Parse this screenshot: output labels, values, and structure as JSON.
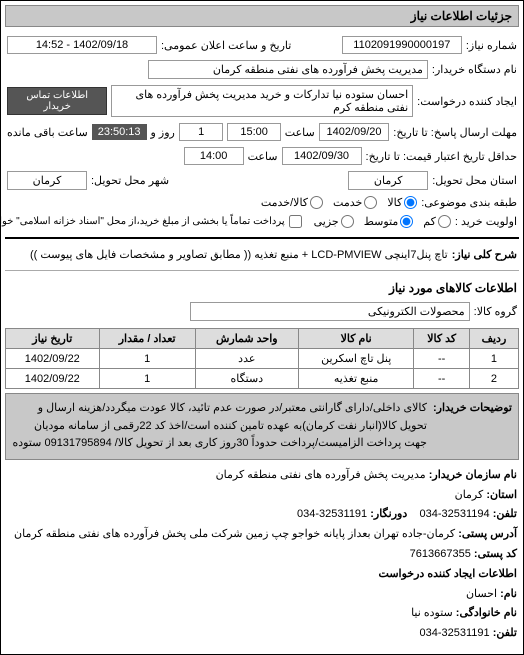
{
  "header": {
    "title": "جزئیات اطلاعات نیاز"
  },
  "fields": {
    "req_number_label": "شماره نیاز:",
    "req_number": "1102091990000197",
    "announce_label": "تاریخ و ساعت اعلان عمومی:",
    "announce_value": "1402/09/18 - 14:52",
    "buyer_org_label": "نام دستگاه خریدار:",
    "buyer_org": "مدیریت پخش فرآورده های نفتی منطقه کرمان",
    "requester_label": "ایجاد کننده درخواست:",
    "requester": "احسان  ستوده نیا  تدارکات و خرید  مدیریت پخش فرآورده های نفتی منطقه کرم",
    "contact_btn": "اطلاعات تماس خریدار",
    "deadline_send_label": "مهلت ارسال پاسخ: تا تاریخ:",
    "deadline_send_date": "1402/09/20",
    "deadline_send_time_label": "ساعت",
    "deadline_send_time": "15:00",
    "remaining_days": "1",
    "remaining_days_label": "روز و",
    "countdown": "23:50:13",
    "remaining_label": "ساعت باقی مانده",
    "validity_label": "حداقل تاریخ اعتبار قیمت: تا تاریخ:",
    "validity_date": "1402/09/30",
    "validity_time_label": "ساعت",
    "validity_time": "14:00",
    "province_label": "استان محل تحویل:",
    "province": "کرمان",
    "city_label": "شهر محل تحویل:",
    "city": "کرمان",
    "package_label": "طبقه بندی موضوعی:",
    "radio_goods": "کالا",
    "radio_service": "خدمت",
    "radio_goods_service": "کالا/خدمت",
    "priority_label": "اولویت خرید :",
    "radio_low": "کم",
    "radio_med": "متوسط",
    "radio_high": "جزیی",
    "payment_note": "پرداخت تماماً یا بخشی از مبلغ خرید،از محل \"اسناد خزانه اسلامی\" خواهد بود."
  },
  "description": {
    "label": "شرح کلی نیاز:",
    "text": "تاچ پنل7اینچی LCD-PMVIEW + منبع تغذیه (( مطابق تصاویر و مشخصات فایل های پیوست ))"
  },
  "goods_section": {
    "title": "اطلاعات کالاهای مورد نیاز",
    "group_label": "گروه کالا:",
    "group_value": "محصولات الکترونیکی"
  },
  "table": {
    "headers": [
      "ردیف",
      "کد کالا",
      "نام کالا",
      "واحد شمارش",
      "تعداد / مقدار",
      "تاریخ نیاز"
    ],
    "rows": [
      [
        "1",
        "--",
        "پنل تاچ اسکرین",
        "عدد",
        "1",
        "1402/09/22"
      ],
      [
        "2",
        "--",
        "منبع تغذیه",
        "دستگاه",
        "1",
        "1402/09/22"
      ]
    ]
  },
  "buyer_note": {
    "label": "توضیحات خریدار:",
    "text": "کالای داخلی/دارای گارانتی معتبر/در صورت عدم تائید، کالا عودت میگردد/هزینه ارسال و تحویل کالا(انبار نفت کرمان)به عهده تامین کننده است/اخذ کد 22رقمی از سامانه مودیان جهت پرداخت الزامیست/پرداخت حدوداً 30روز کاری بعد از تحویل کالا/ 09131795894 ستوده"
  },
  "footer": {
    "org_name_label": "نام سازمان خریدار:",
    "org_name": "مدیریت پخش فرآورده های نفتی منطقه کرمان",
    "org_province_label": "استان:",
    "org_province": "کرمان",
    "phone_label": "تلفن:",
    "phone": "32531194-034",
    "fax_label": "دورنگار:",
    "fax": "32531191-034",
    "address_label": "آدرس پستی:",
    "address": "کرمان-جاده تهران بعداز پایانه خواجو چپ زمین شرکت ملی پخش فرآورده های نفتی منطقه کرمان",
    "postal_label": "کد پستی:",
    "postal": "7613667355",
    "creator_section": "اطلاعات ایجاد کننده درخواست",
    "name_label": "نام:",
    "name": "احسان",
    "lastname_label": "نام خانوادگی:",
    "lastname": "ستوده نیا",
    "phone2_label": "تلفن:",
    "phone2": "32531191-034"
  }
}
